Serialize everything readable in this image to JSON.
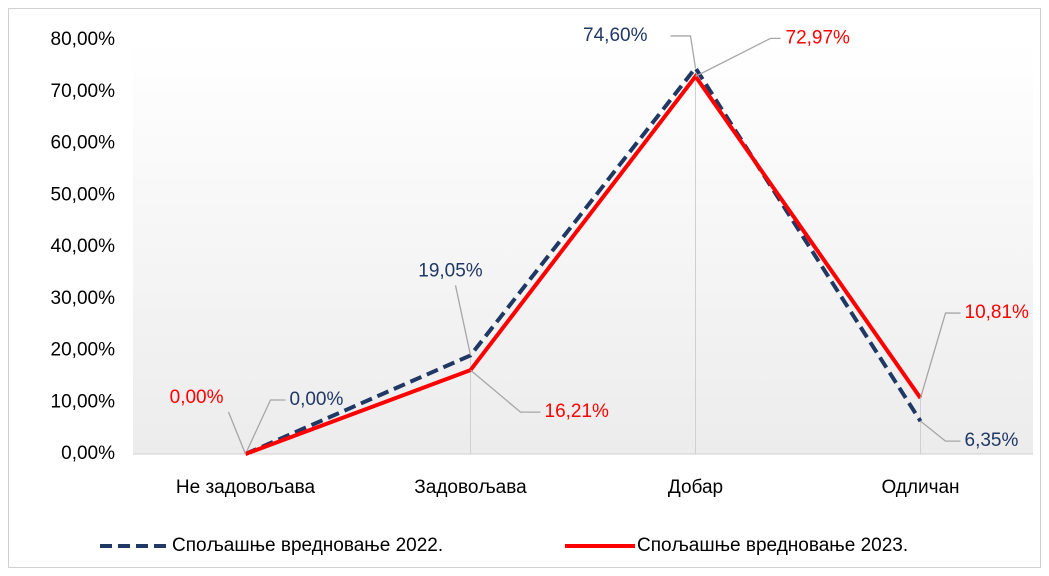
{
  "chart_data": {
    "type": "line",
    "categories": [
      "Не задовољава",
      "Задовољава",
      "Добар",
      "Одличан"
    ],
    "series": [
      {
        "name": "Спољашње вредновање 2022.",
        "color": "#1f3864",
        "dash": true,
        "values": [
          0,
          19.05,
          74.6,
          6.35
        ],
        "value_labels": [
          "0,00%",
          "19,05%",
          "74,60%",
          "6,35%"
        ]
      },
      {
        "name": "Спољашње вредновање 2023.",
        "color": "#ff0000",
        "dash": false,
        "values": [
          0,
          16.21,
          72.97,
          10.81
        ],
        "value_labels": [
          "0,00%",
          "16,21%",
          "72,97%",
          "10,81%"
        ]
      }
    ],
    "ylim": [
      0,
      80
    ],
    "yticks": [
      {
        "value": 0,
        "label": "0,00%"
      },
      {
        "value": 10,
        "label": "10,00%"
      },
      {
        "value": 20,
        "label": "20,00%"
      },
      {
        "value": 30,
        "label": "30,00%"
      },
      {
        "value": 40,
        "label": "40,00%"
      },
      {
        "value": 50,
        "label": "50,00%"
      },
      {
        "value": 60,
        "label": "60,00%"
      },
      {
        "value": 70,
        "label": "70,00%"
      },
      {
        "value": 80,
        "label": "80,00%"
      }
    ]
  }
}
